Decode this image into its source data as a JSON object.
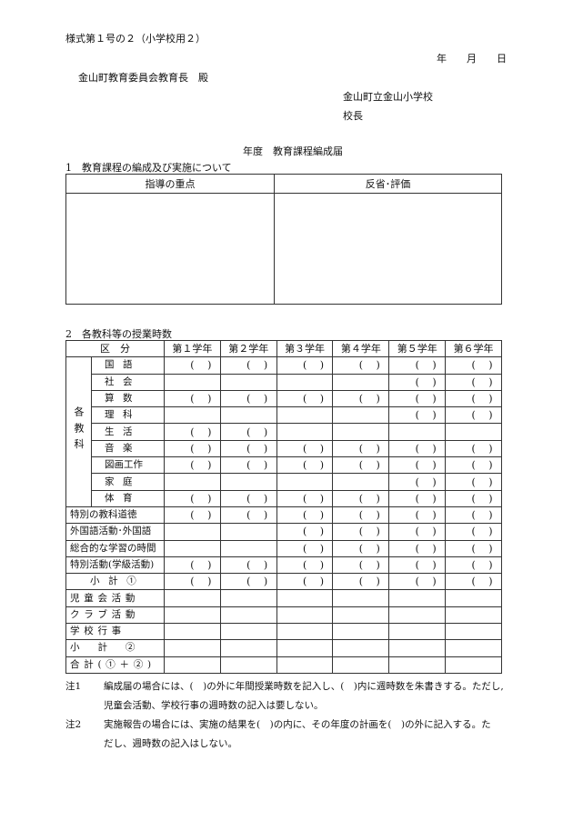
{
  "form_id": "様式第１号の２（小学校用２）",
  "date_line": {
    "year": "年",
    "month": "月",
    "day": "日"
  },
  "addressee": "金山町教育委員会教育長　殿",
  "school": "金山町立金山小学校",
  "principal": "校長",
  "title": "年度　教育課程編成届",
  "section1": {
    "heading": "1　教育課程の編成及び実施について",
    "col_left": "指導の重点",
    "col_right": "反省･評価"
  },
  "section2": {
    "heading": "2　各教科等の授業時数",
    "header_label": "区　分",
    "grades": [
      "第１学年",
      "第２学年",
      "第３学年",
      "第４学年",
      "第５学年",
      "第６学年"
    ],
    "group_label": "各教科",
    "paren_mark": "(　 )",
    "subjects": [
      {
        "label": "国語",
        "parens": [
          true,
          true,
          true,
          true,
          true,
          true
        ]
      },
      {
        "label": "社会",
        "parens": [
          false,
          false,
          false,
          false,
          true,
          true
        ]
      },
      {
        "label": "算数",
        "parens": [
          true,
          true,
          true,
          true,
          true,
          true
        ]
      },
      {
        "label": "理科",
        "parens": [
          false,
          false,
          false,
          false,
          true,
          true
        ]
      },
      {
        "label": "生活",
        "parens": [
          true,
          true,
          false,
          false,
          false,
          false
        ]
      },
      {
        "label": "音楽",
        "parens": [
          true,
          true,
          true,
          true,
          true,
          true
        ]
      },
      {
        "label": "図画工作",
        "parens": [
          true,
          true,
          true,
          true,
          true,
          true
        ]
      },
      {
        "label": "家庭",
        "parens": [
          false,
          false,
          false,
          false,
          true,
          true
        ]
      },
      {
        "label": "体育",
        "parens": [
          true,
          true,
          true,
          true,
          true,
          true
        ]
      }
    ],
    "other_rows": [
      {
        "label": "特別の教科道徳",
        "parens": [
          true,
          true,
          true,
          true,
          true,
          true
        ]
      },
      {
        "label": "外国語活動･外国語",
        "parens": [
          false,
          false,
          true,
          true,
          true,
          true
        ]
      },
      {
        "label": "総合的な学習の時間",
        "parens": [
          false,
          false,
          true,
          true,
          true,
          true
        ]
      },
      {
        "label": "特別活動(学級活動)",
        "parens": [
          true,
          true,
          true,
          true,
          true,
          true
        ]
      },
      {
        "label": "小 計 ①",
        "parens": [
          true,
          true,
          true,
          true,
          true,
          true
        ]
      },
      {
        "label": "児童会活動",
        "parens": [
          false,
          false,
          false,
          false,
          false,
          false
        ]
      },
      {
        "label": "クラブ活動",
        "parens": [
          false,
          false,
          false,
          false,
          false,
          false
        ]
      },
      {
        "label": "学校行事",
        "parens": [
          false,
          false,
          false,
          false,
          false,
          false
        ]
      },
      {
        "label": "小　計　②",
        "parens": [
          false,
          false,
          false,
          false,
          false,
          false
        ]
      },
      {
        "label": "合計(①＋②)",
        "parens": [
          false,
          false,
          false,
          false,
          false,
          false
        ]
      }
    ]
  },
  "notes": [
    {
      "mark": "注1",
      "lines": [
        "編成届の場合には、(　)の外に年間授業時数を記入し、(　)内に週時数を朱書きする。ただし,",
        "児童会活動、学校行事の週時数の記入は要しない。"
      ]
    },
    {
      "mark": "注2",
      "lines": [
        "実施報告の場合には、実施の結果を(　)の内に、その年度の計画を(　)の外に記入する。た",
        "だし、週時数の記入はしない。"
      ]
    }
  ]
}
